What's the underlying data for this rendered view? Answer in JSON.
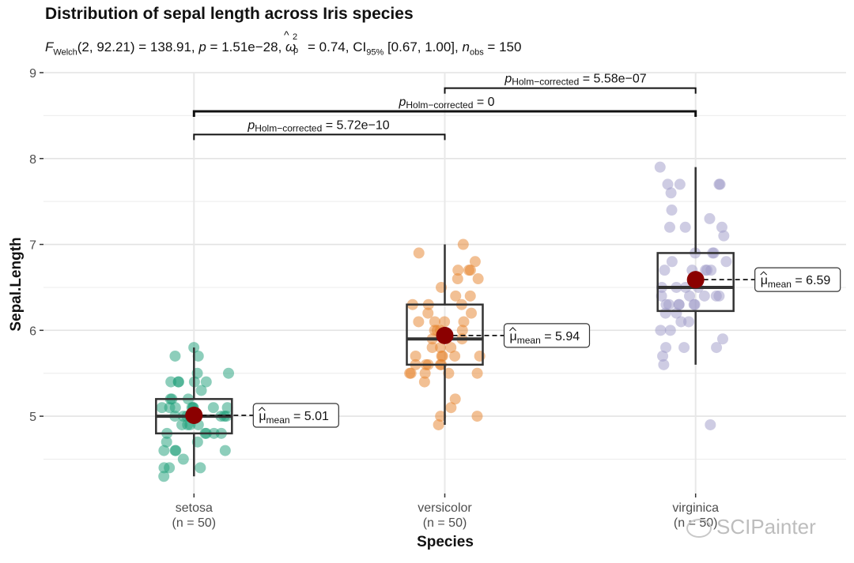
{
  "title": "Distribution of sepal length across Iris species",
  "subtitle": {
    "f_label": "F",
    "f_sub": "Welch",
    "df": "(2, 92.21)",
    "f_value": " = 138.91, ",
    "p_label": "p",
    "p_value": " = 1.51e−28, ",
    "omega_label": "ω",
    "omega_hat": "^",
    "omega_sup": "2",
    "omega_sub": "p",
    "omega_value": " = 0.74, CI",
    "ci_sub": "95%",
    "ci_value": " [0.67, 1.00], ",
    "n_label": "n",
    "n_sub": "obs",
    "n_value": " = 150"
  },
  "watermark": "SCIPainter",
  "chart_data": {
    "type": "boxplot",
    "xlabel": "Species",
    "ylabel": "Sepal.Length",
    "ylim": [
      4.1,
      9.0
    ],
    "yticks": [
      5,
      6,
      7,
      8,
      9
    ],
    "grid": true,
    "categories": [
      "setosa",
      "versicolor",
      "virginica"
    ],
    "category_counts": [
      "(n = 50)",
      "(n = 50)",
      "(n = 50)"
    ],
    "series": [
      {
        "category": "setosa",
        "color": "#1b9e77",
        "whisker_low": 4.3,
        "q1": 4.8,
        "median": 5.0,
        "q3": 5.2,
        "whisker_high": 5.8,
        "mean": 5.01,
        "mean_label": "= 5.01",
        "points": [
          5.1,
          4.9,
          4.7,
          4.6,
          5.0,
          5.4,
          4.6,
          5.0,
          4.4,
          4.9,
          5.4,
          4.8,
          4.8,
          4.3,
          5.8,
          5.7,
          5.4,
          5.1,
          5.7,
          5.1,
          5.4,
          5.1,
          4.6,
          5.1,
          4.8,
          5.0,
          5.0,
          5.2,
          5.2,
          4.7,
          4.8,
          5.4,
          5.2,
          5.5,
          4.9,
          5.0,
          5.5,
          4.9,
          4.4,
          5.1,
          5.0,
          4.5,
          4.4,
          5.0,
          5.1,
          4.8,
          5.1,
          4.6,
          5.3,
          5.0
        ]
      },
      {
        "category": "versicolor",
        "color": "#e6812a",
        "whisker_low": 4.9,
        "q1": 5.6,
        "median": 5.9,
        "q3": 6.3,
        "whisker_high": 7.0,
        "mean": 5.94,
        "mean_label": "= 5.94",
        "points": [
          7.0,
          6.4,
          6.9,
          5.5,
          6.5,
          5.7,
          6.3,
          4.9,
          6.6,
          5.2,
          5.0,
          5.9,
          6.0,
          6.1,
          5.6,
          6.7,
          5.6,
          5.8,
          6.2,
          5.6,
          5.9,
          6.1,
          6.3,
          6.1,
          6.4,
          6.6,
          6.8,
          6.7,
          6.0,
          5.7,
          5.5,
          5.5,
          5.8,
          6.0,
          5.4,
          6.0,
          6.7,
          6.3,
          5.6,
          5.5,
          5.5,
          6.1,
          5.8,
          5.0,
          5.6,
          5.7,
          5.7,
          6.2,
          5.1,
          5.7
        ]
      },
      {
        "category": "virginica",
        "color": "#9e9ac8",
        "whisker_low": 5.6,
        "q1": 6.225,
        "median": 6.5,
        "q3": 6.9,
        "whisker_high": 7.9,
        "mean": 6.59,
        "mean_label": "= 6.59",
        "points": [
          6.3,
          5.8,
          7.1,
          6.3,
          6.5,
          7.6,
          4.9,
          7.3,
          6.7,
          7.2,
          6.5,
          6.4,
          6.8,
          5.7,
          5.8,
          6.4,
          6.5,
          7.7,
          7.7,
          6.0,
          6.9,
          5.6,
          7.7,
          6.3,
          6.7,
          7.2,
          6.2,
          6.1,
          6.4,
          7.2,
          7.4,
          7.9,
          6.4,
          6.3,
          6.1,
          7.7,
          6.3,
          6.4,
          6.0,
          6.9,
          6.7,
          6.9,
          5.8,
          6.8,
          6.7,
          6.7,
          6.3,
          6.5,
          6.2,
          5.9
        ]
      }
    ],
    "comparisons": [
      {
        "from": "setosa",
        "to": "versicolor",
        "label_p": "p",
        "label_sub": "Holm−corrected",
        "label_value": " = 5.72e−10"
      },
      {
        "from": "setosa",
        "to": "virginica",
        "label_p": "p",
        "label_sub": "Holm−corrected",
        "label_value": " = 0"
      },
      {
        "from": "versicolor",
        "to": "virginica",
        "label_p": "p",
        "label_sub": "Holm−corrected",
        "label_value": " = 5.58e−07"
      }
    ],
    "mean_symbol": "μ",
    "mean_symbol_sub": "mean",
    "mean_color": "#8b0000"
  }
}
